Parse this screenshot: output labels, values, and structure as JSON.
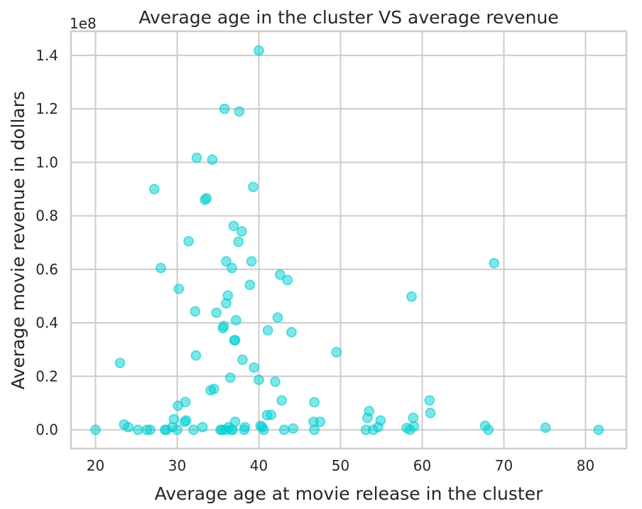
{
  "chart_data": {
    "type": "scatter",
    "title": "Average age in the cluster VS average revenue",
    "xlabel": "Average age at movie release in the cluster",
    "ylabel": "Average movie revenue in dollars",
    "y_offset_label": "1e8",
    "xlim": [
      17,
      85
    ],
    "ylim": [
      -0.07,
      1.49
    ],
    "x_ticks": [
      20,
      30,
      40,
      50,
      60,
      70,
      80
    ],
    "x_tick_labels": [
      "20",
      "30",
      "40",
      "50",
      "60",
      "70",
      "80"
    ],
    "y_ticks": [
      0.0,
      0.2,
      0.4,
      0.6,
      0.8,
      1.0,
      1.2,
      1.4
    ],
    "y_tick_labels": [
      "0.0",
      "0.2",
      "0.4",
      "0.6",
      "0.8",
      "1.0",
      "1.2",
      "1.4"
    ],
    "grid": true,
    "color": "#00ced1",
    "series": [
      {
        "points": [
          [
            20.0,
            0.0
          ],
          [
            23.0,
            0.25
          ],
          [
            23.5,
            0.02
          ],
          [
            24.0,
            0.01
          ],
          [
            25.2,
            0.0
          ],
          [
            26.3,
            0.0
          ],
          [
            26.7,
            0.0
          ],
          [
            27.2,
            0.9
          ],
          [
            28.0,
            0.605
          ],
          [
            28.5,
            0.0
          ],
          [
            28.7,
            0.0
          ],
          [
            29.4,
            0.01
          ],
          [
            29.6,
            0.04
          ],
          [
            30.0,
            0.0
          ],
          [
            30.1,
            0.09
          ],
          [
            30.2,
            0.527
          ],
          [
            30.9,
            0.03
          ],
          [
            31.0,
            0.104
          ],
          [
            31.1,
            0.035
          ],
          [
            31.4,
            0.705
          ],
          [
            32.0,
            0.0
          ],
          [
            32.2,
            0.443
          ],
          [
            32.3,
            0.278
          ],
          [
            32.4,
            1.017
          ],
          [
            33.1,
            0.01
          ],
          [
            33.4,
            0.86
          ],
          [
            33.6,
            0.866
          ],
          [
            34.1,
            0.148
          ],
          [
            34.3,
            1.01
          ],
          [
            34.5,
            0.153
          ],
          [
            34.8,
            0.438
          ],
          [
            35.3,
            0.0
          ],
          [
            35.5,
            0.0
          ],
          [
            35.6,
            0.38
          ],
          [
            35.7,
            0.388
          ],
          [
            35.8,
            1.2
          ],
          [
            35.9,
            0.0
          ],
          [
            36.0,
            0.63
          ],
          [
            36.0,
            0.473
          ],
          [
            36.2,
            0.502
          ],
          [
            36.3,
            0.01
          ],
          [
            36.5,
            0.195
          ],
          [
            36.6,
            0.0
          ],
          [
            36.7,
            0.605
          ],
          [
            36.8,
            0.0
          ],
          [
            36.9,
            0.762
          ],
          [
            37.0,
            0.335
          ],
          [
            37.1,
            0.335
          ],
          [
            37.1,
            0.03
          ],
          [
            37.2,
            0.41
          ],
          [
            37.5,
            0.703
          ],
          [
            37.6,
            1.19
          ],
          [
            37.9,
            0.742
          ],
          [
            38.0,
            0.262
          ],
          [
            38.2,
            0.0
          ],
          [
            38.3,
            0.01
          ],
          [
            38.9,
            0.542
          ],
          [
            39.1,
            0.63
          ],
          [
            39.3,
            0.908
          ],
          [
            39.4,
            0.233
          ],
          [
            40.0,
            1.418
          ],
          [
            40.0,
            0.187
          ],
          [
            40.2,
            0.015
          ],
          [
            40.4,
            0.01
          ],
          [
            40.6,
            0.0
          ],
          [
            41.0,
            0.055
          ],
          [
            41.1,
            0.372
          ],
          [
            41.5,
            0.056
          ],
          [
            42.0,
            0.18
          ],
          [
            42.3,
            0.42
          ],
          [
            42.6,
            0.58
          ],
          [
            42.8,
            0.11
          ],
          [
            43.1,
            0.0
          ],
          [
            43.5,
            0.56
          ],
          [
            44.0,
            0.365
          ],
          [
            44.2,
            0.005
          ],
          [
            46.7,
            0.03
          ],
          [
            46.8,
            0.0
          ],
          [
            46.8,
            0.103
          ],
          [
            47.5,
            0.03
          ],
          [
            49.5,
            0.29
          ],
          [
            53.1,
            0.0
          ],
          [
            53.3,
            0.045
          ],
          [
            53.5,
            0.07
          ],
          [
            54.0,
            0.0
          ],
          [
            54.6,
            0.01
          ],
          [
            54.9,
            0.035
          ],
          [
            58.1,
            0.007
          ],
          [
            58.5,
            0.0
          ],
          [
            58.7,
            0.498
          ],
          [
            58.9,
            0.045
          ],
          [
            59.0,
            0.013
          ],
          [
            60.9,
            0.11
          ],
          [
            61.0,
            0.063
          ],
          [
            67.7,
            0.015
          ],
          [
            68.1,
            0.0
          ],
          [
            68.8,
            0.623
          ],
          [
            75.1,
            0.008
          ],
          [
            81.6,
            0.0
          ]
        ]
      }
    ]
  }
}
